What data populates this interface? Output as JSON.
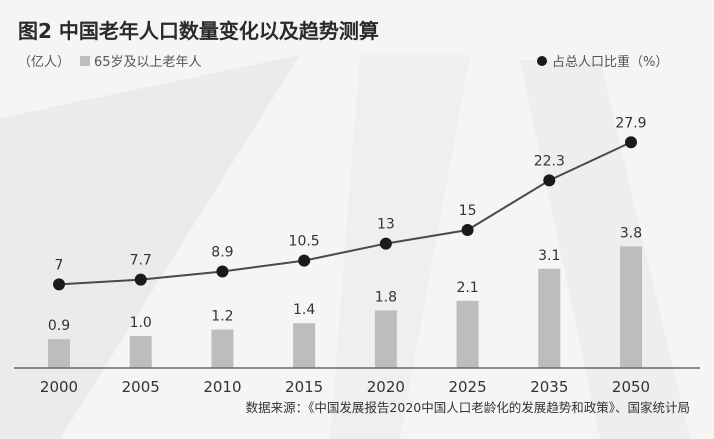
{
  "chart_data": {
    "type": "bar",
    "title": "图2 中国老年人口数量变化以及趋势测算",
    "categories": [
      "2000",
      "2005",
      "2010",
      "2015",
      "2020",
      "2025",
      "2035",
      "2050"
    ],
    "series": [
      {
        "name": "65岁及以上老年人",
        "kind": "bar",
        "unit": "亿人",
        "values": [
          0.9,
          1.0,
          1.2,
          1.4,
          1.8,
          2.1,
          3.1,
          3.8
        ],
        "labels": [
          "0.9",
          "1.0",
          "1.2",
          "1.4",
          "1.8",
          "2.1",
          "3.1",
          "3.8"
        ]
      },
      {
        "name": "占总人口比重（%）",
        "kind": "line",
        "unit": "%",
        "values": [
          7,
          7.7,
          8.9,
          10.5,
          13,
          15,
          22.3,
          27.9
        ],
        "labels": [
          "7",
          "7.7",
          "8.9",
          "10.5",
          "13",
          "15",
          "22.3",
          "27.9"
        ]
      }
    ],
    "bar_ylim": [
      0,
      7.5
    ],
    "line_ylim": [
      -10,
      40
    ],
    "legend": {
      "unit_prefix": "（亿人）",
      "bar_label": "65岁及以上老年人",
      "line_label": "占总人口比重（%）",
      "position": "top"
    },
    "source": "数据来源：《中国发展报告2020中国人口老龄化的发展趋势和政策》、国家统计局"
  },
  "colors": {
    "bar": "#bdbdbd",
    "line": "#4a4a4a",
    "marker": "#1a1a1a",
    "background": "#f5f5f3",
    "axis": "#6a6a6a"
  }
}
